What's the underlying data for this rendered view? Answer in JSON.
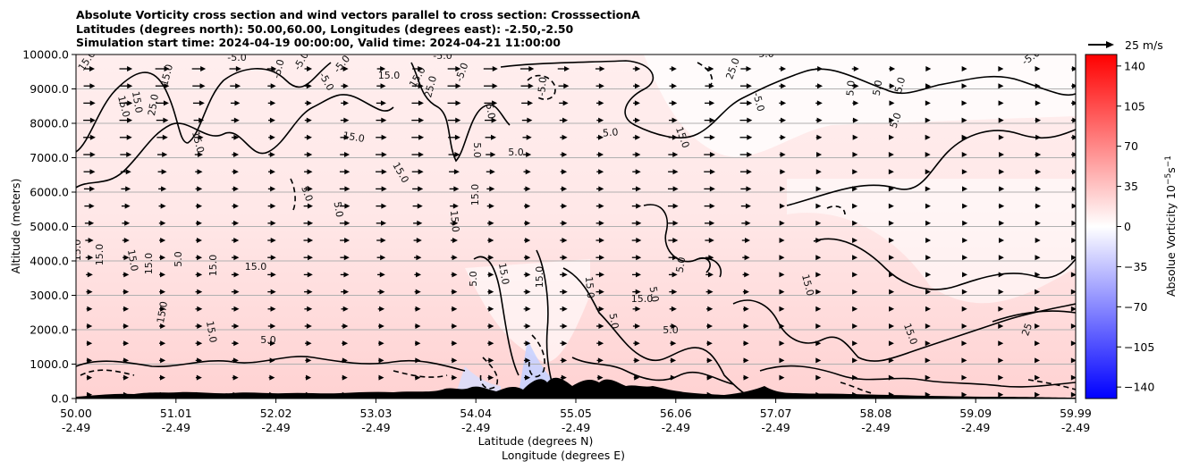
{
  "chart_data": {
    "type": "contour",
    "title_lines": [
      "Absolute Vorticity cross section and wind vectors parallel to cross section: CrosssectionA",
      "Latitudes (degrees north): 50.00,60.00, Longitudes (degrees east): -2.50,-2.50",
      "Simulation start time: 2024-04-19 00:00:00, Valid time: 2024-04-21 11:00:00"
    ],
    "xlabel_lines": [
      "Latitude (degrees N)",
      "Longitude (degrees E)"
    ],
    "ylabel": "Altitude (meters)",
    "x_ticks": [
      {
        "lat": "50.00",
        "lon": "-2.49"
      },
      {
        "lat": "51.01",
        "lon": "-2.49"
      },
      {
        "lat": "52.02",
        "lon": "-2.49"
      },
      {
        "lat": "53.03",
        "lon": "-2.49"
      },
      {
        "lat": "54.04",
        "lon": "-2.49"
      },
      {
        "lat": "55.05",
        "lon": "-2.49"
      },
      {
        "lat": "56.06",
        "lon": "-2.49"
      },
      {
        "lat": "57.07",
        "lon": "-2.49"
      },
      {
        "lat": "58.08",
        "lon": "-2.49"
      },
      {
        "lat": "59.09",
        "lon": "-2.49"
      },
      {
        "lat": "59.99",
        "lon": "-2.49"
      }
    ],
    "y_ticks": [
      "0.0",
      "1000.0",
      "2000.0",
      "3000.0",
      "4000.0",
      "5000.0",
      "6000.0",
      "7000.0",
      "8000.0",
      "9000.0",
      "10000.0"
    ],
    "xlim": [
      50.0,
      59.99
    ],
    "ylim": [
      0,
      10000
    ],
    "grid": "horizontal",
    "colorbar": {
      "label": "Absolue Vorticity 10",
      "label_exp": "−5",
      "label_unit": "s",
      "label_unit_exp": "−1",
      "ticks": [
        "140",
        "105",
        "70",
        "35",
        "0",
        "−35",
        "−70",
        "−105",
        "−140"
      ],
      "range": [
        -150,
        150
      ],
      "colormap": "bwr"
    },
    "quiver_key": {
      "label": "25 m/s",
      "value": 25
    },
    "contour_labels": [
      "15.0",
      "15.0",
      "15.0",
      "25.0",
      "15.0",
      "15.0",
      "-5.0",
      "-5.0",
      "15.0",
      "15.0",
      "15.0",
      "25.0",
      "-5.0",
      "-5.0",
      "-5.0",
      "-5.0",
      "5.0",
      "-5.0",
      "5.0",
      "-5.0",
      "5.0",
      "15.0",
      "5.0",
      "15.0",
      "5.0",
      "5.0",
      "15.0",
      "15.0",
      "15.0",
      "15.0",
      "15.0",
      "5.0",
      "15.0",
      "15.0",
      "15.0",
      "5.0",
      "15.0",
      "15.0",
      "15.0",
      "15.0",
      "5.0",
      "5.0",
      "5.0",
      "5.0",
      "15.0",
      "15.0",
      "25",
      "5.0",
      "5.0",
      "5.0",
      "5.0",
      "5.0",
      "-5.0",
      "25.0",
      "-5.0",
      "5.0",
      "15.0",
      "15.0"
    ],
    "colors": {
      "positive": "#ff0000",
      "negative": "#0000ff",
      "terrain": "#000000",
      "contour": "#000000"
    }
  }
}
